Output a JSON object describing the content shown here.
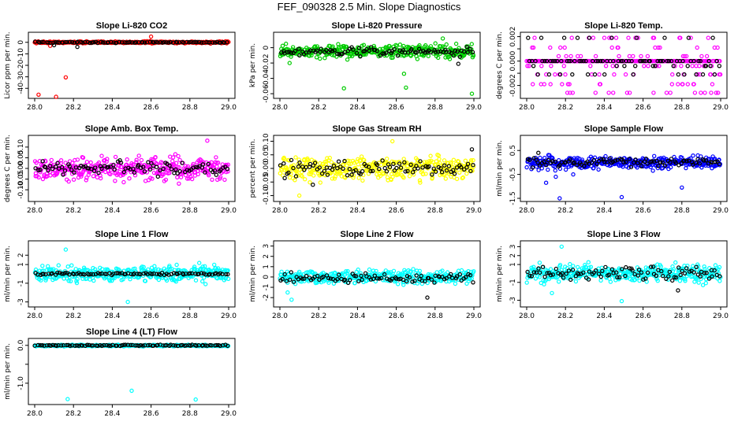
{
  "figure_title": "FEF_090328  2.5 Min. Slope Diagnostics",
  "chart_data": [
    {
      "title": "Slope Li-820 CO2",
      "ylabel": "Licor ppm per min.",
      "type": "scatter",
      "xlim": [
        28.0,
        29.0
      ],
      "ylim": [
        -46,
        6
      ],
      "yticks": [
        0,
        -10,
        -20,
        -30,
        -40
      ],
      "series": [
        {
          "color": "#ff0000",
          "base": 0,
          "spread": 0.8,
          "outliers": [
            [
              28.02,
              -45.5
            ],
            [
              28.11,
              -47.5
            ],
            [
              28.16,
              -30.5
            ],
            [
              28.6,
              5
            ],
            [
              28.08,
              -3
            ]
          ]
        },
        {
          "color": "#000000",
          "base": 0,
          "spread": 0.5,
          "outliers": [
            [
              28.1,
              -2.5
            ],
            [
              28.22,
              -4
            ]
          ]
        }
      ]
    },
    {
      "title": "Slope Li-820 Pressure",
      "ylabel": "kPa per min.",
      "type": "scatter",
      "xlim": [
        28.0,
        29.0
      ],
      "ylim": [
        -0.062,
        0.016
      ],
      "yticks": [
        0.0,
        -0.02,
        -0.04,
        -0.06
      ],
      "series": [
        {
          "color": "#00cc00",
          "base": -0.005,
          "spread": 0.008,
          "outliers": [
            [
              28.33,
              -0.053
            ],
            [
              28.65,
              -0.052
            ],
            [
              28.99,
              -0.06
            ],
            [
              28.84,
              0.012
            ],
            [
              28.05,
              -0.02
            ],
            [
              28.64,
              -0.034
            ]
          ]
        },
        {
          "color": "#000000",
          "base": -0.005,
          "spread": 0.005,
          "outliers": [
            [
              28.92,
              -0.021
            ]
          ]
        }
      ]
    },
    {
      "title": "Slope Li-820 Temp.",
      "ylabel": "degrees C per min.",
      "type": "scatter",
      "xlim": [
        28.0,
        29.0
      ],
      "ylim": [
        -0.0028,
        0.0021
      ],
      "yticks": [
        0.002,
        0.001,
        0.0,
        -0.001,
        -0.002
      ],
      "yticklabels": [
        "0.002",
        "",
        "0.000",
        "",
        "-0.002"
      ],
      "series": [
        {
          "color": "#ff00ff",
          "quantized": [
            0.0019,
            0.0011,
            0.0004,
            0.0,
            -0.0004,
            -0.0011,
            -0.0019,
            -0.0026
          ],
          "base": 0
        },
        {
          "color": "#000000",
          "quantized": [
            0.0019,
            0.0,
            -0.0004,
            -0.0011
          ],
          "base": 0
        }
      ]
    },
    {
      "title": "Slope Amb. Box Temp.",
      "ylabel": "degrees C per min.",
      "type": "scatter",
      "xlim": [
        28.0,
        29.0
      ],
      "ylim": [
        -0.14,
        0.14
      ],
      "yticks": [
        0.1,
        0.05,
        0.0,
        -0.05,
        -0.1
      ],
      "yticklabels": [
        "0.10",
        "0.05",
        "0.00",
        "-0.05",
        "-0.10"
      ],
      "series": [
        {
          "color": "#ff00ff",
          "base": 0,
          "spread": 0.05,
          "outliers": [
            [
              28.89,
              0.13
            ]
          ]
        },
        {
          "color": "#000000",
          "base": 0,
          "spread": 0.03,
          "outliers": []
        }
      ]
    },
    {
      "title": "Slope Gas Stream RH",
      "ylabel": "percent per min.",
      "type": "scatter",
      "xlim": [
        28.0,
        29.0
      ],
      "ylim": [
        -0.11,
        0.11
      ],
      "yticks": [
        0.1,
        0.05,
        0.0,
        -0.05,
        -0.1
      ],
      "yticklabels": [
        "0.10",
        "0.05",
        "0.00",
        "-0.05",
        "-0.10"
      ],
      "series": [
        {
          "color": "#ffff00",
          "base": 0,
          "spread": 0.04,
          "outliers": [
            [
              28.58,
              0.1
            ],
            [
              28.1,
              -0.1
            ]
          ]
        },
        {
          "color": "#000000",
          "base": 0,
          "spread": 0.03,
          "outliers": [
            [
              28.17,
              -0.06
            ],
            [
              28.99,
              0.07
            ]
          ]
        }
      ]
    },
    {
      "title": "Slope Sample Flow",
      "ylabel": "ml/min per min.",
      "type": "scatter",
      "xlim": [
        28.0,
        29.0
      ],
      "ylim": [
        -1.5,
        1.0
      ],
      "yticks": [
        0.5,
        -0.5,
        -1.5
      ],
      "series": [
        {
          "color": "#0000ff",
          "base": 0,
          "spread": 0.25,
          "outliers": [
            [
              28.17,
              -1.5
            ],
            [
              28.49,
              -1.45
            ],
            [
              28.1,
              -0.85
            ],
            [
              28.8,
              -1.05
            ],
            [
              28.15,
              -0.6
            ],
            [
              28.24,
              -0.5
            ]
          ]
        },
        {
          "color": "#000000",
          "base": 0,
          "spread": 0.15,
          "outliers": [
            [
              28.06,
              0.4
            ]
          ]
        }
      ]
    },
    {
      "title": "Slope Line 1 Flow",
      "ylabel": "ml/min per min.",
      "type": "scatter",
      "xlim": [
        28.0,
        29.0
      ],
      "ylim": [
        -3.2,
        3.2
      ],
      "yticks": [
        2,
        1,
        -1,
        -3
      ],
      "yticklabels": [
        "2",
        "1",
        "-1",
        "-3"
      ],
      "series": [
        {
          "color": "#00ffff",
          "base": 0,
          "spread": 0.8,
          "outliers": [
            [
              28.48,
              -3.0
            ],
            [
              28.16,
              2.6
            ]
          ]
        },
        {
          "color": "#000000",
          "base": 0,
          "spread": 0.1,
          "outliers": []
        }
      ]
    },
    {
      "title": "Slope Line 2 Flow",
      "ylabel": "ml/min per min.",
      "type": "scatter",
      "xlim": [
        28.0,
        29.0
      ],
      "ylim": [
        -2.6,
        3.2
      ],
      "yticks": [
        3,
        2,
        1,
        0,
        -1,
        -2
      ],
      "series": [
        {
          "color": "#00ffff",
          "base": 0,
          "spread": 0.6,
          "outliers": [
            [
              28.06,
              -2.2
            ],
            [
              28.04,
              -1.5
            ]
          ]
        },
        {
          "color": "#000000",
          "base": -0.1,
          "spread": 0.4,
          "outliers": [
            [
              28.76,
              -2.0
            ]
          ]
        }
      ]
    },
    {
      "title": "Slope Line 3 Flow",
      "ylabel": "ml/min per min.",
      "type": "scatter",
      "xlim": [
        28.0,
        29.0
      ],
      "ylim": [
        -3.4,
        3.3
      ],
      "yticks": [
        3,
        2,
        1,
        -1,
        -3
      ],
      "yticklabels": [
        "3",
        "2",
        "1",
        "-1",
        "-3"
      ],
      "series": [
        {
          "color": "#00ffff",
          "base": 0,
          "spread": 0.9,
          "outliers": [
            [
              28.49,
              -3.1
            ],
            [
              28.18,
              3.0
            ],
            [
              28.13,
              -2.2
            ]
          ]
        },
        {
          "color": "#000000",
          "base": 0,
          "spread": 0.7,
          "outliers": [
            [
              28.78,
              -1.9
            ]
          ]
        }
      ]
    },
    {
      "title": "Slope Line 4 (LT) Flow",
      "ylabel": "ml/min per min.",
      "type": "scatter",
      "xlim": [
        28.0,
        29.0
      ],
      "ylim": [
        -1.48,
        0.1
      ],
      "yticks": [
        0.0,
        -0.5,
        -1.0
      ],
      "yticklabels": [
        "0.0",
        "",
        "-1.0"
      ],
      "series": [
        {
          "color": "#00ffff",
          "base": -0.005,
          "spread": 0.02,
          "outliers": [
            [
              28.17,
              -1.42
            ],
            [
              28.5,
              -1.2
            ],
            [
              28.83,
              -1.43
            ]
          ]
        },
        {
          "color": "#000000",
          "base": 0,
          "spread": 0.015,
          "outliers": []
        }
      ]
    }
  ],
  "xticks": [
    "28.0",
    "28.2",
    "28.4",
    "28.6",
    "28.8",
    "29.0"
  ]
}
